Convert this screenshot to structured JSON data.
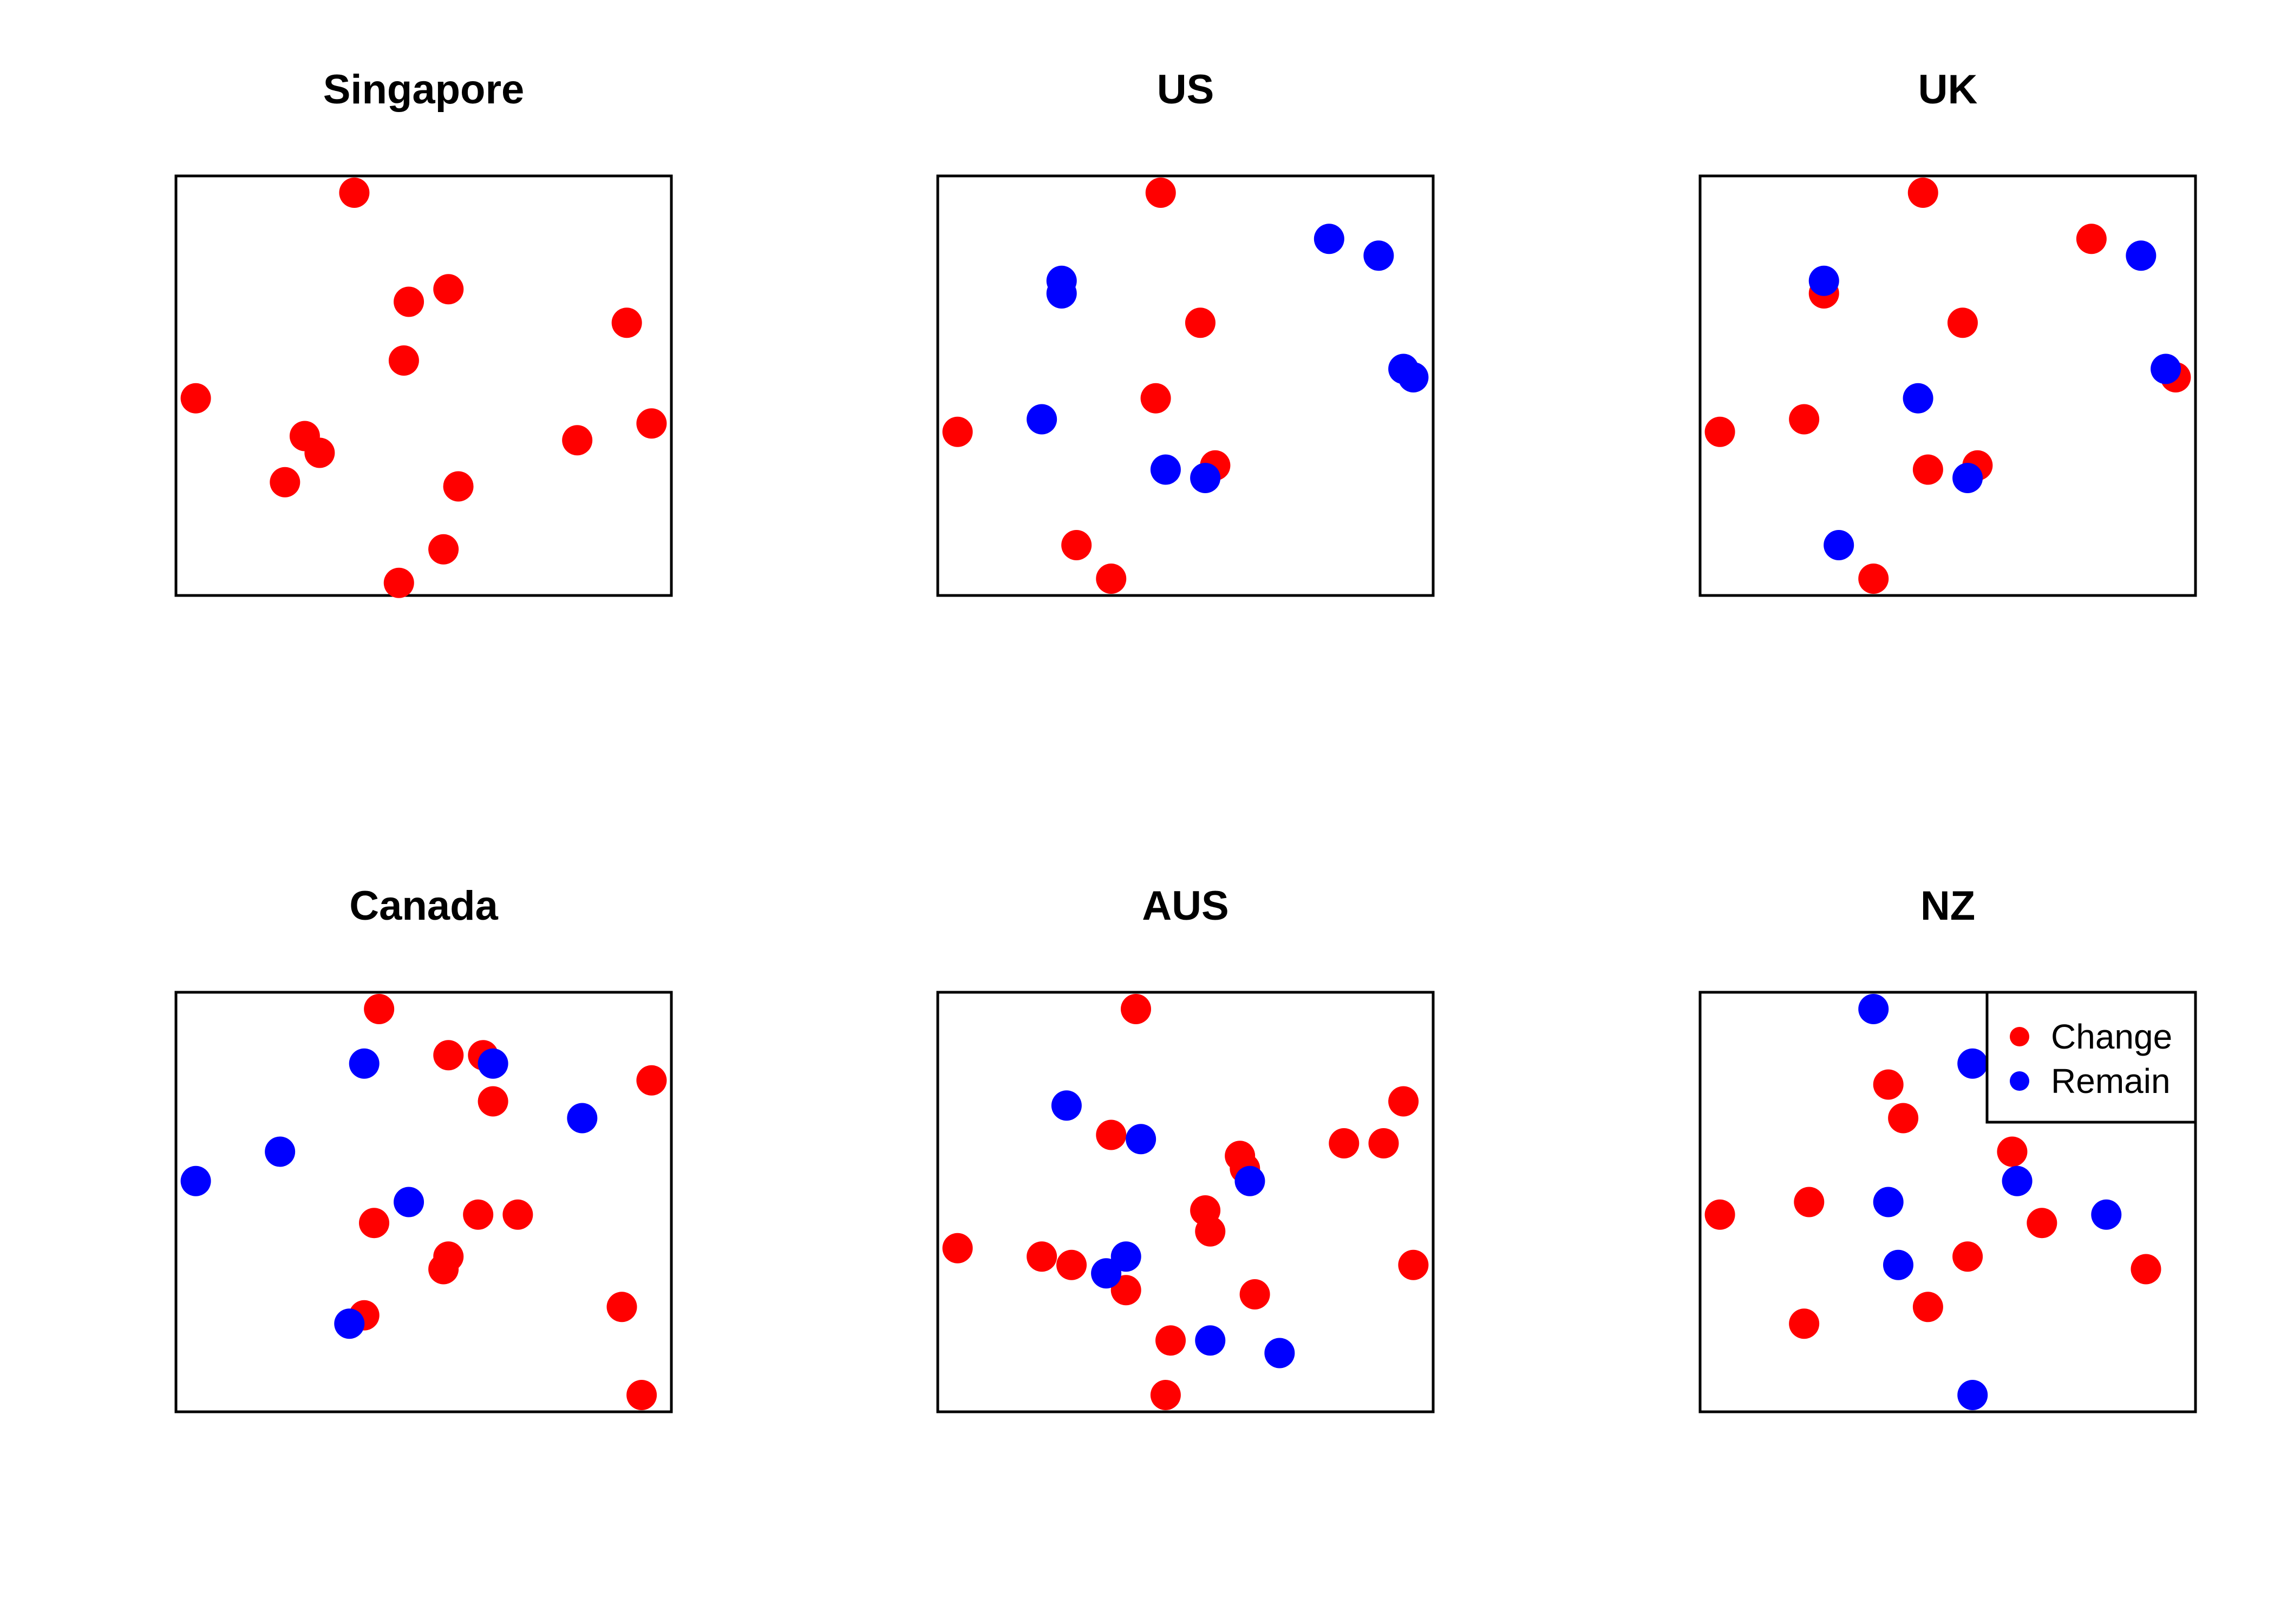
{
  "chart_data": [
    {
      "type": "scatter",
      "title": "Singapore",
      "xlim": [
        0,
        1
      ],
      "ylim": [
        0,
        1
      ],
      "axes": "none",
      "grid": false,
      "series": [
        {
          "name": "Change",
          "points": [
            [
              0.36,
              0.96
            ],
            [
              0.47,
              0.7
            ],
            [
              0.55,
              0.73
            ],
            [
              0.46,
              0.56
            ],
            [
              0.91,
              0.65
            ],
            [
              0.04,
              0.47
            ],
            [
              0.26,
              0.38
            ],
            [
              0.29,
              0.34
            ],
            [
              0.22,
              0.27
            ],
            [
              0.57,
              0.26
            ],
            [
              0.81,
              0.37
            ],
            [
              0.96,
              0.41
            ],
            [
              0.54,
              0.11
            ],
            [
              0.45,
              0.03
            ]
          ]
        },
        {
          "name": "Remain",
          "points": []
        }
      ]
    },
    {
      "type": "scatter",
      "title": "US",
      "xlim": [
        0,
        1
      ],
      "ylim": [
        0,
        1
      ],
      "axes": "none",
      "grid": false,
      "series": [
        {
          "name": "Change",
          "points": [
            [
              0.45,
              0.96
            ],
            [
              0.53,
              0.65
            ],
            [
              0.44,
              0.47
            ],
            [
              0.04,
              0.39
            ],
            [
              0.56,
              0.31
            ],
            [
              0.28,
              0.12
            ],
            [
              0.35,
              0.04
            ]
          ]
        },
        {
          "name": "Remain",
          "points": [
            [
              0.79,
              0.85
            ],
            [
              0.89,
              0.81
            ],
            [
              0.25,
              0.75
            ],
            [
              0.25,
              0.72
            ],
            [
              0.94,
              0.54
            ],
            [
              0.96,
              0.52
            ],
            [
              0.21,
              0.42
            ],
            [
              0.46,
              0.3
            ],
            [
              0.54,
              0.28
            ]
          ]
        }
      ]
    },
    {
      "type": "scatter",
      "title": "UK",
      "xlim": [
        0,
        1
      ],
      "ylim": [
        0,
        1
      ],
      "axes": "none",
      "grid": false,
      "series": [
        {
          "name": "Change",
          "points": [
            [
              0.45,
              0.96
            ],
            [
              0.79,
              0.85
            ],
            [
              0.25,
              0.72
            ],
            [
              0.53,
              0.65
            ],
            [
              0.96,
              0.52
            ],
            [
              0.04,
              0.39
            ],
            [
              0.21,
              0.42
            ],
            [
              0.46,
              0.3
            ],
            [
              0.56,
              0.31
            ],
            [
              0.35,
              0.04
            ]
          ]
        },
        {
          "name": "Remain",
          "points": [
            [
              0.89,
              0.81
            ],
            [
              0.25,
              0.75
            ],
            [
              0.94,
              0.54
            ],
            [
              0.44,
              0.47
            ],
            [
              0.54,
              0.28
            ],
            [
              0.28,
              0.12
            ]
          ]
        }
      ]
    },
    {
      "type": "scatter",
      "title": "Canada",
      "xlim": [
        0,
        1
      ],
      "ylim": [
        0,
        1
      ],
      "axes": "none",
      "grid": false,
      "series": [
        {
          "name": "Change",
          "points": [
            [
              0.41,
              0.96
            ],
            [
              0.55,
              0.85
            ],
            [
              0.62,
              0.85
            ],
            [
              0.96,
              0.79
            ],
            [
              0.64,
              0.74
            ],
            [
              0.61,
              0.47
            ],
            [
              0.69,
              0.47
            ],
            [
              0.4,
              0.45
            ],
            [
              0.55,
              0.37
            ],
            [
              0.54,
              0.34
            ],
            [
              0.38,
              0.23
            ],
            [
              0.9,
              0.25
            ],
            [
              0.94,
              0.04
            ]
          ]
        },
        {
          "name": "Remain",
          "points": [
            [
              0.38,
              0.83
            ],
            [
              0.64,
              0.83
            ],
            [
              0.82,
              0.7
            ],
            [
              0.21,
              0.62
            ],
            [
              0.04,
              0.55
            ],
            [
              0.47,
              0.5
            ],
            [
              0.35,
              0.21
            ]
          ]
        }
      ]
    },
    {
      "type": "scatter",
      "title": "AUS",
      "xlim": [
        0,
        1
      ],
      "ylim": [
        0,
        1
      ],
      "axes": "none",
      "grid": false,
      "series": [
        {
          "name": "Change",
          "points": [
            [
              0.4,
              0.96
            ],
            [
              0.94,
              0.74
            ],
            [
              0.35,
              0.66
            ],
            [
              0.82,
              0.64
            ],
            [
              0.9,
              0.64
            ],
            [
              0.61,
              0.61
            ],
            [
              0.62,
              0.58
            ],
            [
              0.54,
              0.48
            ],
            [
              0.55,
              0.43
            ],
            [
              0.04,
              0.39
            ],
            [
              0.21,
              0.37
            ],
            [
              0.27,
              0.35
            ],
            [
              0.96,
              0.35
            ],
            [
              0.38,
              0.29
            ],
            [
              0.64,
              0.28
            ],
            [
              0.47,
              0.17
            ],
            [
              0.46,
              0.04
            ]
          ]
        },
        {
          "name": "Remain",
          "points": [
            [
              0.26,
              0.73
            ],
            [
              0.41,
              0.65
            ],
            [
              0.63,
              0.55
            ],
            [
              0.38,
              0.37
            ],
            [
              0.34,
              0.33
            ],
            [
              0.55,
              0.17
            ],
            [
              0.69,
              0.14
            ]
          ]
        }
      ]
    },
    {
      "type": "scatter",
      "title": "NZ",
      "xlim": [
        0,
        1
      ],
      "ylim": [
        0,
        1
      ],
      "axes": "none",
      "grid": false,
      "legend": {
        "placement": "top-right",
        "entries": [
          "Change",
          "Remain"
        ]
      },
      "series": [
        {
          "name": "Change",
          "points": [
            [
              0.38,
              0.78
            ],
            [
              0.41,
              0.7
            ],
            [
              0.63,
              0.62
            ],
            [
              0.22,
              0.5
            ],
            [
              0.04,
              0.47
            ],
            [
              0.69,
              0.45
            ],
            [
              0.9,
              0.34
            ],
            [
              0.54,
              0.37
            ],
            [
              0.46,
              0.25
            ],
            [
              0.21,
              0.21
            ]
          ]
        },
        {
          "name": "Remain",
          "points": [
            [
              0.35,
              0.96
            ],
            [
              0.55,
              0.83
            ],
            [
              0.64,
              0.55
            ],
            [
              0.38,
              0.5
            ],
            [
              0.82,
              0.47
            ],
            [
              0.4,
              0.35
            ],
            [
              0.55,
              0.04
            ]
          ]
        }
      ]
    }
  ],
  "colors": {
    "Change": "#ff0000",
    "Remain": "#0000ff",
    "frame": "#000000"
  }
}
